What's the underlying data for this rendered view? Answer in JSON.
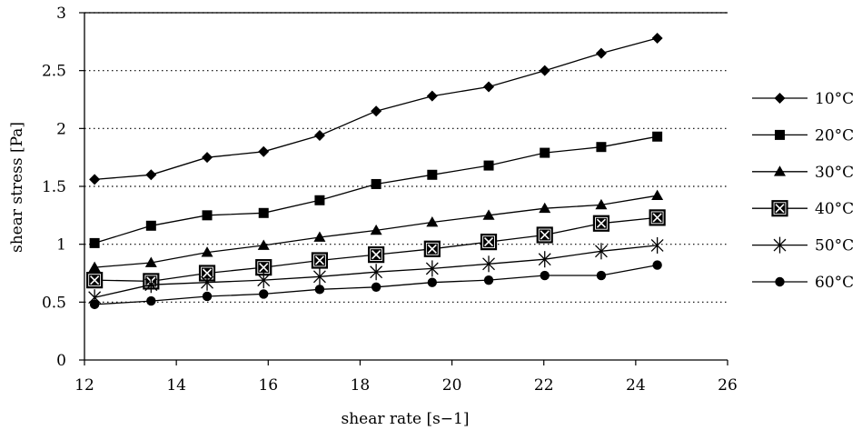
{
  "chart_data": {
    "type": "line",
    "title": "",
    "xlabel": "shear rate [s−1]",
    "ylabel": "shear stress [Pa]",
    "xlim": [
      12,
      26
    ],
    "ylim": [
      0,
      3
    ],
    "x_ticks": [
      "12",
      "14",
      "16",
      "18",
      "20",
      "22",
      "24",
      "26"
    ],
    "y_ticks": [
      "0",
      "0.5",
      "1",
      "1.5",
      "2",
      "2.5",
      "3"
    ],
    "grid": "horizontal dotted",
    "legend_position": "right",
    "x": [
      12.22,
      13.45,
      14.67,
      15.9,
      17.12,
      18.35,
      19.57,
      20.8,
      22.02,
      23.25,
      24.47
    ],
    "series": [
      {
        "name": "10°C",
        "marker": "diamond",
        "values": [
          1.56,
          1.6,
          1.75,
          1.8,
          1.94,
          2.15,
          2.28,
          2.36,
          2.5,
          2.65,
          2.78
        ]
      },
      {
        "name": "20°C",
        "marker": "square",
        "values": [
          1.01,
          1.16,
          1.25,
          1.27,
          1.38,
          1.52,
          1.6,
          1.68,
          1.79,
          1.84,
          1.93
        ]
      },
      {
        "name": "30°C",
        "marker": "triangle",
        "values": [
          0.8,
          0.84,
          0.93,
          0.99,
          1.06,
          1.12,
          1.19,
          1.25,
          1.31,
          1.34,
          1.42
        ]
      },
      {
        "name": "40°C",
        "marker": "boxed-x",
        "values": [
          0.69,
          0.68,
          0.75,
          0.8,
          0.86,
          0.91,
          0.96,
          1.02,
          1.08,
          1.18,
          1.23
        ]
      },
      {
        "name": "50°C",
        "marker": "asterisk",
        "values": [
          0.54,
          0.65,
          0.67,
          0.69,
          0.72,
          0.76,
          0.79,
          0.83,
          0.87,
          0.94,
          0.99
        ]
      },
      {
        "name": "60°C",
        "marker": "circle",
        "values": [
          0.48,
          0.51,
          0.55,
          0.57,
          0.61,
          0.63,
          0.67,
          0.69,
          0.73,
          0.73,
          0.82
        ]
      }
    ]
  }
}
